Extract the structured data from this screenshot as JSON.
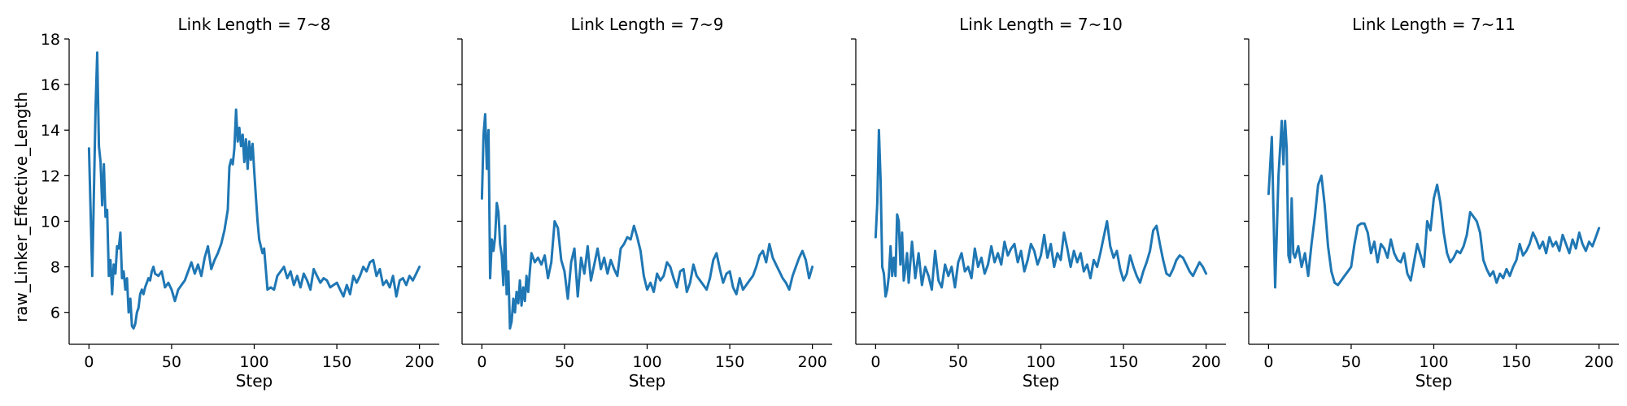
{
  "chart_data": {
    "type": "line",
    "layout": "facet-row",
    "sharey": true,
    "ylabel": "raw_Linker_Effective_Length",
    "xlabel": "Step",
    "ylim": [
      4.6,
      18
    ],
    "yticks": [
      6,
      8,
      10,
      12,
      14,
      16,
      18
    ],
    "xlim": [
      -12,
      212
    ],
    "xticks": [
      0,
      50,
      100,
      150,
      200
    ],
    "grid": false,
    "legend": "none",
    "line_color": "#1f77b4",
    "panels": [
      {
        "title": "Link Length = 7~8",
        "series": [
          {
            "x": [
              0,
              2,
              4,
              5,
              6,
              7,
              8,
              9,
              10,
              11,
              12,
              13,
              14,
              15,
              16,
              17,
              18,
              19,
              20,
              21,
              22,
              23,
              24,
              25,
              26,
              27,
              28,
              29,
              30,
              31,
              32,
              33,
              34,
              35,
              36,
              37,
              38,
              39,
              40,
              42,
              44,
              46,
              48,
              50,
              52,
              54,
              56,
              58,
              60,
              62,
              64,
              66,
              68,
              70,
              72,
              74,
              76,
              78,
              80,
              82,
              84,
              85,
              86,
              87,
              88,
              89,
              90,
              91,
              92,
              93,
              94,
              95,
              96,
              97,
              98,
              99,
              100,
              101,
              102,
              103,
              104,
              105,
              106,
              108,
              110,
              112,
              114,
              116,
              118,
              120,
              122,
              124,
              126,
              128,
              130,
              132,
              134,
              136,
              138,
              140,
              142,
              144,
              146,
              148,
              150,
              152,
              154,
              156,
              158,
              160,
              162,
              164,
              166,
              168,
              170,
              172,
              174,
              176,
              178,
              180,
              182,
              184,
              186,
              188,
              190,
              192,
              194,
              196,
              198,
              200
            ],
            "y": [
              13.2,
              7.6,
              15.0,
              17.4,
              13.3,
              12.6,
              10.7,
              12.5,
              10.2,
              10.5,
              7.6,
              8.3,
              6.8,
              8.1,
              7.7,
              8.9,
              8.8,
              9.5,
              7.5,
              7.8,
              7.0,
              7.5,
              6.0,
              6.6,
              5.4,
              5.3,
              5.5,
              6.0,
              6.2,
              6.8,
              7.0,
              6.8,
              7.1,
              7.3,
              7.5,
              7.4,
              7.8,
              8.0,
              7.7,
              7.6,
              7.8,
              7.1,
              7.3,
              7.0,
              6.5,
              7.0,
              7.2,
              7.4,
              7.8,
              8.2,
              7.7,
              8.1,
              7.6,
              8.4,
              8.9,
              7.9,
              8.3,
              8.6,
              9.0,
              9.6,
              10.5,
              12.4,
              12.7,
              12.5,
              13.2,
              14.9,
              13.5,
              14.1,
              13.3,
              13.8,
              12.6,
              13.6,
              12.3,
              13.5,
              12.7,
              13.4,
              12.2,
              11.1,
              10.0,
              9.2,
              8.9,
              8.6,
              8.8,
              7.0,
              7.1,
              7.0,
              7.6,
              7.8,
              8.0,
              7.5,
              7.8,
              7.2,
              7.6,
              7.1,
              7.7,
              7.4,
              7.0,
              7.9,
              7.6,
              7.3,
              7.5,
              7.4,
              7.1,
              7.2,
              7.3,
              7.0,
              6.7,
              7.2,
              6.8,
              7.6,
              7.3,
              7.6,
              8.0,
              7.8,
              8.2,
              8.3,
              7.6,
              7.9,
              7.2,
              7.4,
              7.1,
              7.6,
              6.7,
              7.4,
              7.5,
              7.2,
              7.6,
              7.4,
              7.7,
              8.0
            ]
          }
        ]
      },
      {
        "title": "Link Length = 7~9",
        "series": [
          {
            "x": [
              0,
              1,
              2,
              3,
              4,
              5,
              6,
              7,
              8,
              9,
              10,
              11,
              12,
              13,
              14,
              15,
              16,
              17,
              18,
              19,
              20,
              21,
              22,
              23,
              24,
              25,
              26,
              27,
              28,
              29,
              30,
              32,
              34,
              36,
              38,
              40,
              42,
              44,
              46,
              48,
              50,
              52,
              54,
              56,
              58,
              60,
              62,
              64,
              66,
              68,
              70,
              72,
              74,
              76,
              78,
              80,
              82,
              84,
              86,
              88,
              90,
              92,
              94,
              96,
              98,
              100,
              102,
              104,
              106,
              108,
              110,
              112,
              114,
              116,
              118,
              120,
              122,
              124,
              126,
              128,
              130,
              132,
              134,
              136,
              138,
              140,
              142,
              144,
              146,
              148,
              150,
              152,
              154,
              156,
              158,
              160,
              162,
              164,
              166,
              168,
              170,
              172,
              174,
              176,
              178,
              180,
              182,
              184,
              186,
              188,
              190,
              192,
              194,
              196,
              198,
              200
            ],
            "y": [
              11.0,
              13.8,
              14.7,
              12.3,
              14.0,
              7.5,
              9.2,
              8.7,
              9.3,
              10.8,
              10.4,
              9.0,
              8.5,
              7.2,
              9.8,
              6.8,
              7.8,
              5.3,
              5.6,
              6.6,
              6.0,
              6.9,
              6.4,
              7.4,
              6.3,
              7.1,
              6.5,
              7.6,
              6.9,
              7.8,
              8.6,
              8.2,
              8.4,
              8.1,
              8.5,
              7.5,
              8.2,
              10.0,
              9.7,
              8.3,
              7.8,
              6.6,
              8.2,
              8.8,
              6.7,
              8.4,
              7.7,
              8.9,
              7.4,
              8.1,
              8.8,
              7.9,
              8.4,
              7.7,
              8.3,
              7.9,
              7.6,
              8.8,
              9.0,
              9.3,
              9.2,
              9.8,
              9.3,
              8.7,
              7.6,
              7.0,
              7.3,
              6.9,
              7.7,
              7.4,
              7.6,
              8.2,
              8.0,
              7.5,
              7.1,
              7.8,
              7.9,
              6.9,
              7.3,
              8.1,
              7.6,
              7.4,
              7.2,
              7.0,
              7.5,
              8.3,
              8.6,
              7.9,
              7.3,
              7.7,
              7.8,
              7.1,
              6.8,
              7.5,
              7.0,
              7.2,
              7.4,
              7.6,
              8.0,
              8.5,
              8.7,
              8.2,
              9.0,
              8.4,
              8.1,
              7.8,
              7.5,
              7.3,
              7.0,
              7.6,
              8.0,
              8.4,
              8.7,
              8.3,
              7.5,
              8.0
            ]
          }
        ]
      },
      {
        "title": "Link Length = 7~10",
        "series": [
          {
            "x": [
              0,
              1,
              2,
              3,
              4,
              5,
              6,
              7,
              8,
              9,
              10,
              11,
              12,
              13,
              14,
              15,
              16,
              17,
              18,
              19,
              20,
              22,
              24,
              26,
              28,
              30,
              32,
              34,
              36,
              38,
              40,
              42,
              44,
              46,
              48,
              50,
              52,
              54,
              56,
              58,
              60,
              62,
              64,
              66,
              68,
              70,
              72,
              74,
              76,
              78,
              80,
              82,
              84,
              86,
              88,
              90,
              92,
              94,
              96,
              98,
              100,
              102,
              104,
              106,
              108,
              110,
              112,
              114,
              116,
              118,
              120,
              122,
              124,
              126,
              128,
              130,
              132,
              134,
              136,
              138,
              140,
              142,
              144,
              146,
              148,
              150,
              152,
              154,
              156,
              158,
              160,
              162,
              164,
              166,
              168,
              170,
              172,
              174,
              176,
              178,
              180,
              182,
              184,
              186,
              188,
              190,
              192,
              194,
              196,
              198,
              200
            ],
            "y": [
              9.3,
              10.8,
              14.0,
              11.8,
              8.0,
              7.7,
              6.7,
              7.0,
              7.6,
              8.9,
              7.6,
              8.4,
              7.6,
              10.3,
              10.0,
              8.1,
              9.5,
              7.4,
              7.9,
              8.6,
              7.3,
              9.1,
              7.5,
              8.6,
              7.2,
              8.0,
              7.6,
              7.0,
              8.7,
              7.4,
              7.1,
              8.1,
              7.6,
              8.0,
              7.1,
              8.2,
              8.6,
              7.8,
              8.0,
              7.5,
              8.8,
              8.0,
              8.4,
              7.7,
              8.1,
              8.9,
              8.2,
              8.6,
              8.1,
              9.1,
              8.5,
              8.8,
              9.0,
              8.2,
              8.7,
              7.8,
              8.3,
              9.0,
              8.7,
              8.1,
              8.5,
              9.4,
              8.4,
              9.0,
              8.0,
              8.6,
              8.3,
              9.5,
              8.8,
              8.0,
              8.7,
              8.2,
              8.6,
              7.8,
              8.1,
              7.5,
              8.3,
              8.0,
              8.6,
              9.3,
              10.0,
              8.9,
              8.4,
              8.7,
              7.9,
              7.4,
              7.7,
              8.5,
              8.0,
              7.6,
              7.3,
              7.8,
              8.2,
              8.7,
              9.6,
              9.8,
              9.0,
              8.3,
              7.7,
              7.6,
              7.9,
              8.3,
              8.5,
              8.4,
              8.1,
              7.8,
              7.6,
              7.9,
              8.2,
              8.0,
              7.7
            ]
          }
        ]
      },
      {
        "title": "Link Length = 7~11",
        "series": [
          {
            "x": [
              0,
              2,
              4,
              6,
              8,
              9,
              10,
              11,
              12,
              13,
              14,
              15,
              16,
              18,
              20,
              22,
              24,
              26,
              28,
              30,
              32,
              34,
              36,
              38,
              40,
              42,
              44,
              46,
              48,
              50,
              52,
              54,
              56,
              58,
              60,
              62,
              64,
              66,
              68,
              70,
              72,
              74,
              76,
              78,
              80,
              82,
              84,
              86,
              88,
              90,
              92,
              94,
              96,
              98,
              100,
              102,
              104,
              106,
              108,
              110,
              112,
              114,
              116,
              118,
              120,
              122,
              124,
              126,
              128,
              130,
              132,
              134,
              136,
              138,
              140,
              142,
              144,
              146,
              148,
              150,
              152,
              154,
              156,
              158,
              160,
              162,
              164,
              166,
              168,
              170,
              172,
              174,
              176,
              178,
              180,
              182,
              184,
              186,
              188,
              190,
              192,
              194,
              196,
              198,
              200
            ],
            "y": [
              11.2,
              13.7,
              7.1,
              12.0,
              14.4,
              12.5,
              14.4,
              13.2,
              8.5,
              8.2,
              11.0,
              8.6,
              8.4,
              8.9,
              8.0,
              8.6,
              7.6,
              9.0,
              10.2,
              11.6,
              12.0,
              10.7,
              8.9,
              7.8,
              7.3,
              7.2,
              7.4,
              7.6,
              7.8,
              8.0,
              9.0,
              9.8,
              9.9,
              9.9,
              9.5,
              8.6,
              9.1,
              8.2,
              9.0,
              8.8,
              8.4,
              9.2,
              8.6,
              8.3,
              8.2,
              8.6,
              7.7,
              7.4,
              8.2,
              9.0,
              8.5,
              8.0,
              10.0,
              9.6,
              11.0,
              11.6,
              10.8,
              9.5,
              8.6,
              8.2,
              8.4,
              8.7,
              8.6,
              8.9,
              9.4,
              10.4,
              10.2,
              10.0,
              9.5,
              8.3,
              7.9,
              7.6,
              7.8,
              7.3,
              7.7,
              7.5,
              7.9,
              7.6,
              8.0,
              8.3,
              9.0,
              8.5,
              8.7,
              9.0,
              9.5,
              9.2,
              8.8,
              9.1,
              8.6,
              9.3,
              8.9,
              9.1,
              8.7,
              9.4,
              9.0,
              8.6,
              9.2,
              8.8,
              9.5,
              9.0,
              8.7,
              9.1,
              8.9,
              9.3,
              9.7
            ]
          }
        ]
      }
    ]
  }
}
